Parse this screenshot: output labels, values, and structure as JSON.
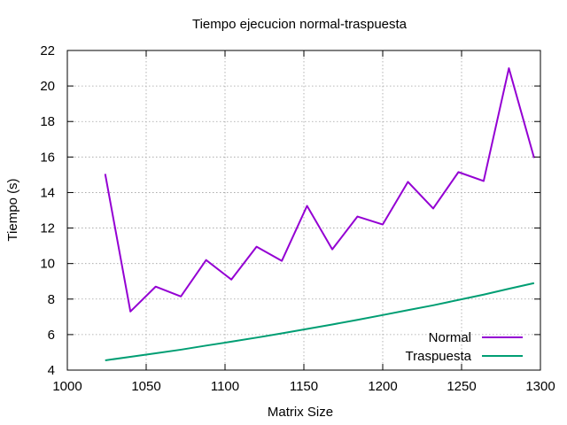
{
  "chart_data": {
    "type": "line",
    "title": "Tiempo ejecucion normal-traspuesta",
    "xlabel": "Matrix Size",
    "ylabel": "Tiempo (s)",
    "xlim": [
      1000,
      1300
    ],
    "ylim": [
      4,
      22
    ],
    "xticks": [
      1000,
      1050,
      1100,
      1150,
      1200,
      1250,
      1300
    ],
    "yticks": [
      4,
      6,
      8,
      10,
      12,
      14,
      16,
      18,
      20,
      22
    ],
    "xtick_labels": [
      "1000",
      "1050",
      "1100",
      "1150",
      "1200",
      "1250",
      "1300"
    ],
    "ytick_labels": [
      "4",
      "6",
      "8",
      "10",
      "12",
      "14",
      "16",
      "18",
      "20",
      "22"
    ],
    "grid": true,
    "legend_position": "bottom-right",
    "x": [
      1024,
      1040,
      1056,
      1072,
      1088,
      1104,
      1120,
      1136,
      1152,
      1168,
      1184,
      1200,
      1216,
      1232,
      1248,
      1264,
      1280,
      1296
    ],
    "series": [
      {
        "name": "Normal",
        "color": "#9400d3",
        "values": [
          15.05,
          7.3,
          8.7,
          8.15,
          10.2,
          9.1,
          10.95,
          10.15,
          13.25,
          10.8,
          12.65,
          12.2,
          14.6,
          13.1,
          15.15,
          14.65,
          21.0,
          15.95
        ]
      },
      {
        "name": "Traspuesta",
        "color": "#009e73",
        "values": [
          4.55,
          4.75,
          4.95,
          5.15,
          5.38,
          5.6,
          5.83,
          6.07,
          6.32,
          6.57,
          6.83,
          7.1,
          7.38,
          7.65,
          7.95,
          8.25,
          8.58,
          8.9
        ]
      }
    ]
  }
}
